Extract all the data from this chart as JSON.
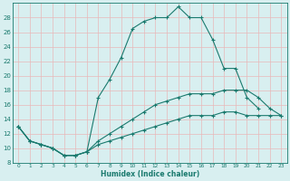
{
  "xlabel": "Humidex (Indice chaleur)",
  "bg_color": "#d8eff0",
  "line_color": "#1a7a6e",
  "grid_color": "#f5c8c8",
  "xlim": [
    -0.5,
    23.5
  ],
  "ylim": [
    8,
    30
  ],
  "xticks": [
    0,
    1,
    2,
    3,
    4,
    5,
    6,
    7,
    8,
    9,
    10,
    11,
    12,
    13,
    14,
    15,
    16,
    17,
    18,
    19,
    20,
    21,
    22,
    23
  ],
  "yticks": [
    8,
    10,
    12,
    14,
    16,
    18,
    20,
    22,
    24,
    26,
    28
  ],
  "series": [
    {
      "x": [
        0,
        1,
        2,
        3,
        4,
        5,
        6,
        7,
        8,
        9,
        10,
        11,
        12,
        13,
        14,
        15,
        16,
        17,
        18,
        19,
        20,
        21
      ],
      "y": [
        13,
        11,
        10.5,
        10,
        9,
        9,
        9.5,
        17,
        19.5,
        22.5,
        26.5,
        27.5,
        28,
        28,
        29.5,
        28,
        28,
        25,
        21,
        21,
        17,
        15.5
      ]
    },
    {
      "x": [
        0,
        1,
        2,
        3,
        4,
        5,
        6,
        7,
        8,
        9,
        10,
        11,
        12,
        13,
        14,
        15,
        16,
        17,
        18,
        19,
        20,
        21,
        22,
        23
      ],
      "y": [
        13,
        11,
        10.5,
        10,
        9,
        9,
        9.5,
        11,
        12,
        13,
        14,
        15,
        16,
        16.5,
        17,
        17.5,
        17.5,
        17.5,
        18,
        18,
        18,
        17,
        15.5,
        14.5
      ]
    },
    {
      "x": [
        0,
        1,
        2,
        3,
        4,
        5,
        6,
        7,
        8,
        9,
        10,
        11,
        12,
        13,
        14,
        15,
        16,
        17,
        18,
        19,
        20,
        21,
        22,
        23
      ],
      "y": [
        13,
        11,
        10.5,
        10,
        9,
        9,
        9.5,
        10.5,
        11,
        11.5,
        12,
        12.5,
        13,
        13.5,
        14,
        14.5,
        14.5,
        14.5,
        15,
        15,
        14.5,
        14.5,
        14.5,
        14.5
      ]
    }
  ]
}
